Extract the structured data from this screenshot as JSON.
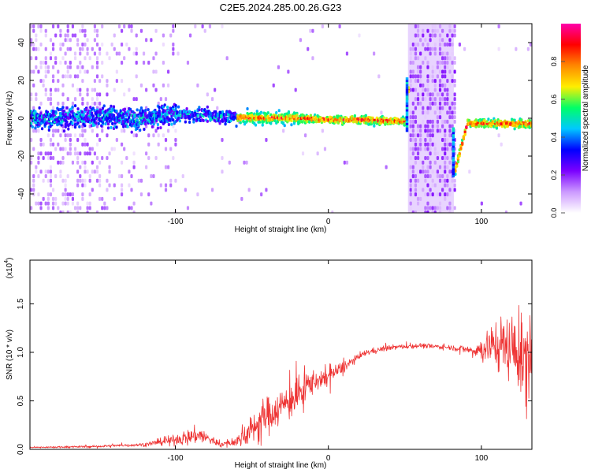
{
  "figure": {
    "title": "C2E5.2024.285.00.26.G23"
  },
  "chart_data": [
    {
      "type": "heatmap",
      "title": "C2E5.2024.285.00.26.G23",
      "xlabel": "Height of straight line (km)",
      "ylabel": "Frequency (Hz)",
      "xlim": [
        -195,
        133
      ],
      "ylim": [
        -50,
        50
      ],
      "x_ticks": [
        -100,
        0,
        100
      ],
      "y_ticks": [
        -40,
        -20,
        0,
        20,
        40
      ],
      "colorbar": {
        "label": "Normalized spectral amplitude",
        "range": [
          0,
          1
        ],
        "ticks": [
          0.0,
          0.2,
          0.4,
          0.6,
          0.8
        ],
        "colormap": [
          "#ffffff",
          "#cc99ff",
          "#7b00ff",
          "#0000ff",
          "#00c8ff",
          "#00ff66",
          "#ffee00",
          "#ff8800",
          "#ff0000",
          "#ff00aa"
        ]
      },
      "ridge": {
        "x": [
          -175,
          -150,
          -125,
          -100,
          -75,
          -50,
          -25,
          0,
          25,
          50,
          51,
          55,
          80,
          82,
          90,
          110,
          133
        ],
        "y": [
          0,
          1,
          -1,
          2,
          1,
          0,
          0,
          -1,
          -1,
          -2,
          18,
          0,
          0,
          -28,
          -3,
          -3,
          -3
        ]
      },
      "gaps": [
        [
          52,
          82
        ]
      ],
      "grid": false
    },
    {
      "type": "line",
      "xlabel": "Height of straight line (km)",
      "ylabel": "SNR (10 * v/v)",
      "y_multiplier": "(x10",
      "y_multiplier_exp": "4",
      "xlim": [
        -195,
        133
      ],
      "ylim": [
        0,
        1.95
      ],
      "x_ticks": [
        -100,
        0,
        100
      ],
      "y_ticks": [
        "0.0",
        "0.5",
        "1.0",
        "1.5"
      ],
      "color": "#ee3333",
      "envelope": {
        "x": [
          -195,
          -150,
          -120,
          -100,
          -85,
          -80,
          -70,
          -60,
          -50,
          -45,
          -40,
          -30,
          -20,
          -15,
          -10,
          0,
          10,
          20,
          25,
          40,
          60,
          80,
          95,
          100,
          110,
          120,
          125,
          130,
          133
        ],
        "mean": [
          0.02,
          0.03,
          0.05,
          0.1,
          0.15,
          0.12,
          0.05,
          0.08,
          0.2,
          0.3,
          0.35,
          0.45,
          0.55,
          0.65,
          0.7,
          0.75,
          0.85,
          0.95,
          1.0,
          1.05,
          1.07,
          1.05,
          1.02,
          1.03,
          1.1,
          1.05,
          0.95,
          0.9,
          1.0
        ],
        "spread": [
          0.01,
          0.02,
          0.03,
          0.08,
          0.15,
          0.1,
          0.04,
          0.08,
          0.25,
          0.3,
          0.3,
          0.3,
          0.3,
          0.25,
          0.2,
          0.15,
          0.1,
          0.05,
          0.05,
          0.04,
          0.04,
          0.04,
          0.08,
          0.2,
          0.4,
          0.55,
          0.6,
          0.65,
          0.6
        ]
      },
      "grid": false
    }
  ]
}
